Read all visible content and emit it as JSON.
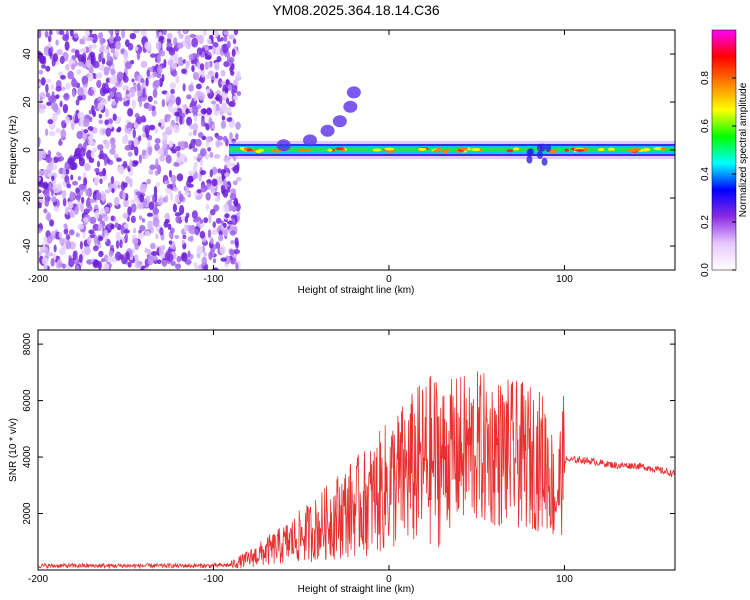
{
  "title": "YM08.2025.364.18.14.C36",
  "chart_data": [
    {
      "type": "heatmap",
      "name": "spectrogram",
      "xlabel": "Height of straight line (km)",
      "ylabel": "Frequency (Hz)",
      "xlim": [
        -200,
        163
      ],
      "ylim": [
        -50,
        50
      ],
      "xticks": [
        -200,
        -100,
        0,
        100
      ],
      "yticks": [
        -40,
        -20,
        0,
        20,
        40
      ],
      "noise_region_x": [
        -200,
        -90
      ],
      "signal_band_center_hz": 0,
      "colorbar": {
        "label": "Normalized spectral amplitude",
        "range": [
          0.0,
          1.0
        ],
        "ticks": [
          0.0,
          0.2,
          0.4,
          0.6,
          0.8
        ],
        "colors": [
          "#ffffff",
          "#e8c8ff",
          "#8a2be2",
          "#0000ff",
          "#00ffff",
          "#00ff00",
          "#ffff00",
          "#ff8000",
          "#ff0000",
          "#ff00ff"
        ]
      }
    },
    {
      "type": "line",
      "name": "snr",
      "xlabel": "Height of straight line (km)",
      "ylabel": "SNR (10 * v/v)",
      "xlim": [
        -200,
        163
      ],
      "ylim": [
        0,
        8500
      ],
      "xticks": [
        -200,
        -100,
        0,
        100
      ],
      "yticks": [
        2000,
        4000,
        6000,
        8000
      ],
      "color": "#e83030",
      "series": [
        {
          "name": "SNR",
          "x": [
            -200,
            -150,
            -100,
            -90,
            -80,
            -60,
            -40,
            -30,
            -20,
            -10,
            0,
            10,
            20,
            30,
            40,
            50,
            60,
            70,
            80,
            90,
            95,
            100,
            110,
            120,
            130,
            140,
            150,
            163
          ],
          "y": [
            150,
            150,
            150,
            180,
            400,
            900,
            1500,
            1900,
            2200,
            2500,
            3000,
            3400,
            3800,
            4000,
            4200,
            4300,
            4200,
            4100,
            4000,
            3800,
            2500,
            3900,
            3900,
            3800,
            3700,
            3700,
            3600,
            3400
          ]
        }
      ]
    }
  ]
}
